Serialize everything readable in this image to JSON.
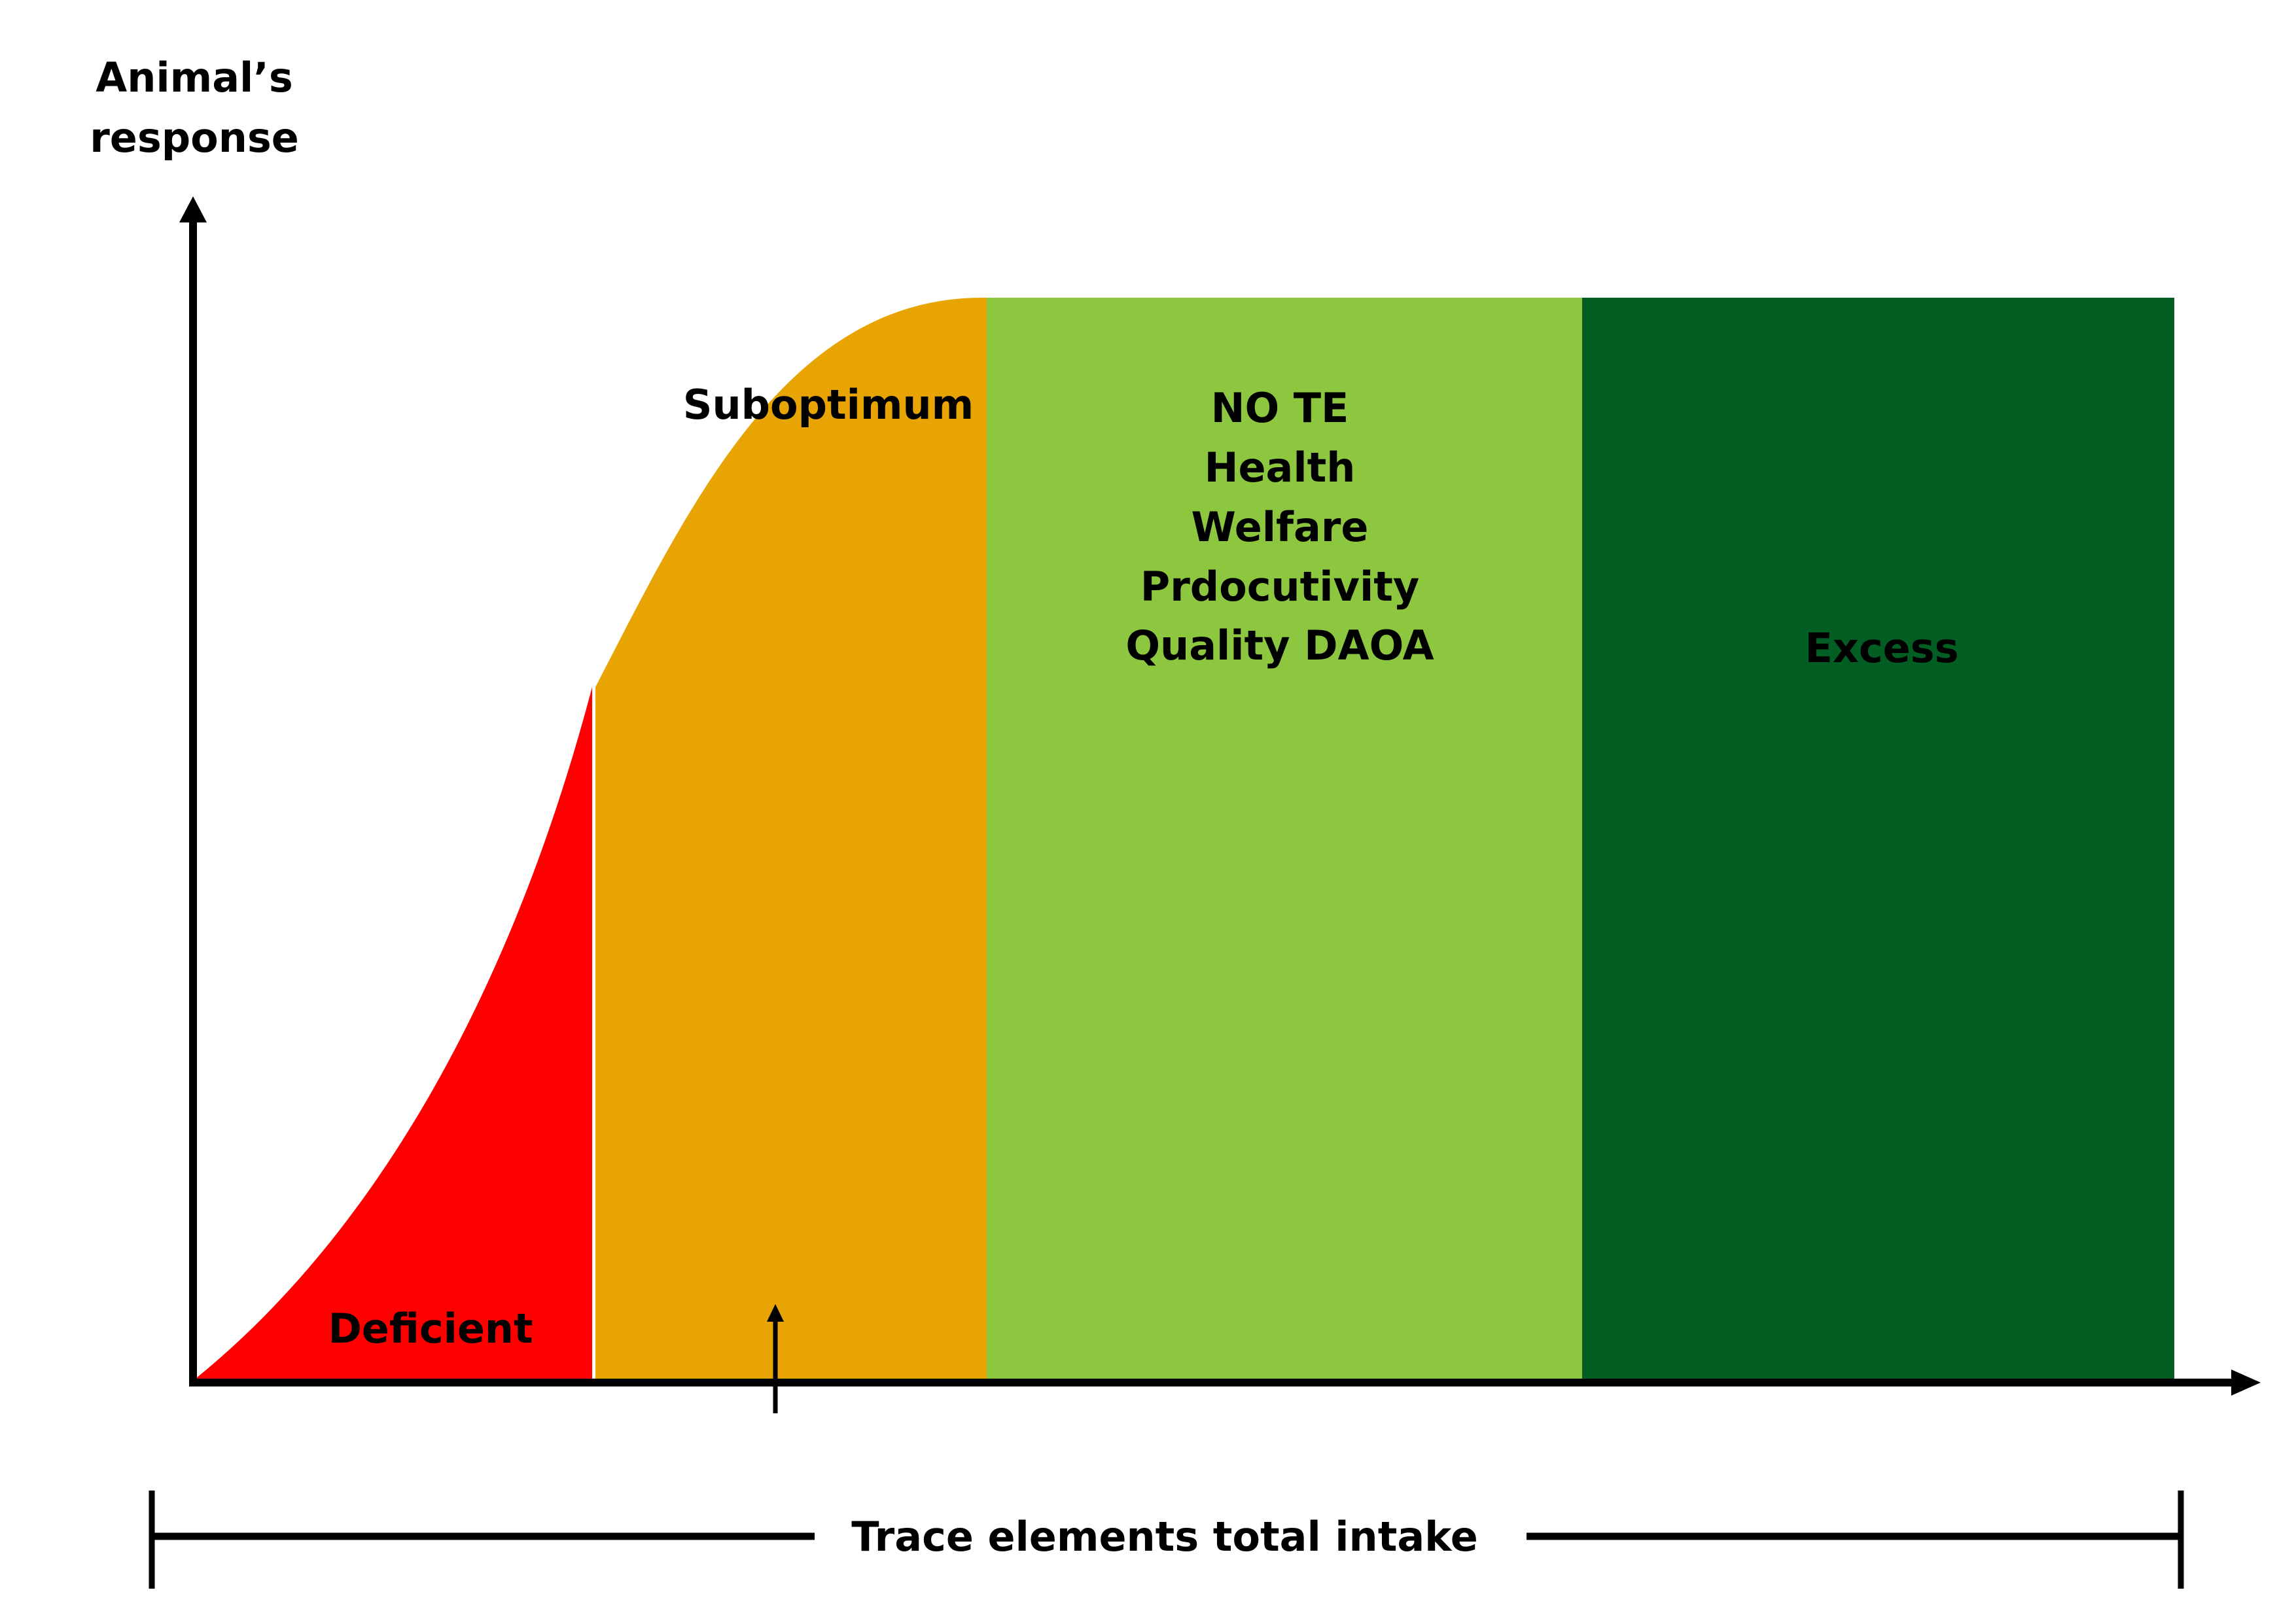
{
  "y_axis_label": {
    "line1": "Animal’s",
    "line2": "response"
  },
  "x_axis_label": "Trace elements total intake",
  "zones": {
    "deficient": {
      "label": "Deficient",
      "color": "#ff0000"
    },
    "suboptimum": {
      "label": "Suboptimum",
      "color": "#e8a403"
    },
    "optimum": {
      "lines": [
        "NO TE",
        "Health",
        "Welfare",
        "Prdocutivity",
        "Quality DAOA"
      ],
      "color": "#8dc63f"
    },
    "excess": {
      "label": "Excess",
      "color": "#025e23"
    }
  },
  "colors": {
    "axis": "#000000",
    "background": "#ffffff"
  }
}
